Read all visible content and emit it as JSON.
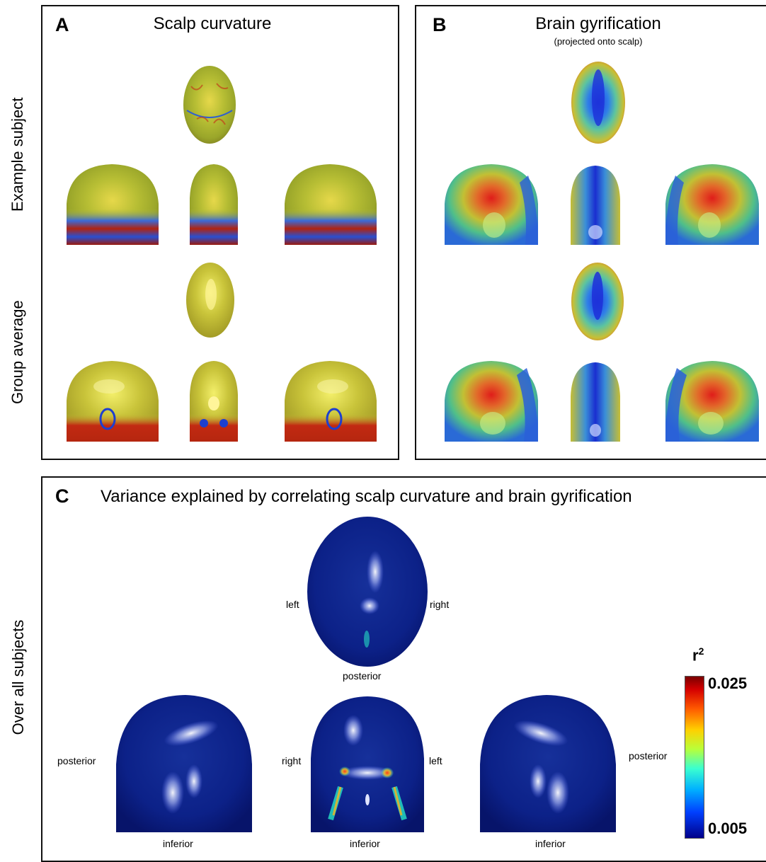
{
  "panel_a": {
    "letter": "A",
    "title": "Scalp curvature"
  },
  "panel_b": {
    "letter": "B",
    "title": "Brain gyrification",
    "subtitle": "(projected onto scalp)"
  },
  "panel_c": {
    "letter": "C",
    "title": "Variance explained by correlating scalp curvature and brain gyrification"
  },
  "row_labels": {
    "example": "Example subject",
    "group": "Group average",
    "all": "Over all subjects"
  },
  "direction_labels": {
    "left": "left",
    "right": "right",
    "posterior": "posterior",
    "inferior": "inferior"
  },
  "colorbar": {
    "label": "r",
    "label_sup": "2",
    "max": "0.025",
    "min": "0.005"
  },
  "colors": {
    "scalp_base": "#b9c232",
    "gyri_red": "#d92b1a",
    "gyri_blue": "#1c3fd6",
    "variance_base": "#0b1f8a"
  }
}
